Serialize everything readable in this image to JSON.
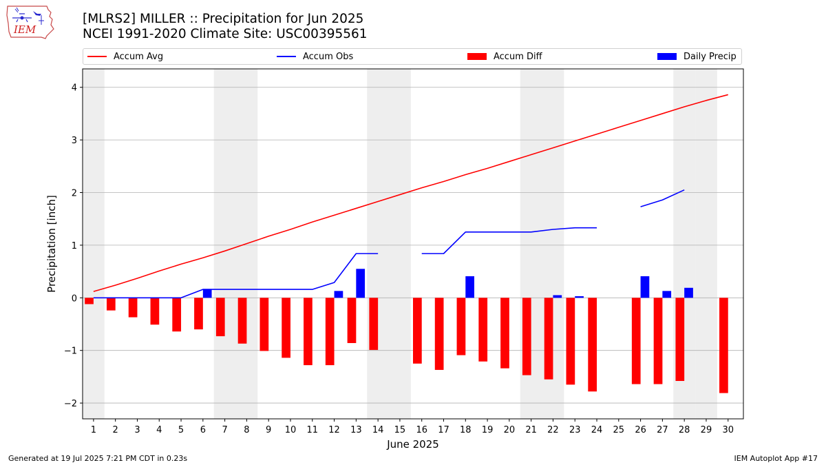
{
  "header": {
    "title_line1": "[MLRS2] MILLER :: Precipitation for Jun 2025",
    "title_line2": "NCEI 1991-2020 Climate Site: USC00395561",
    "logo_text": "IEM"
  },
  "footer": {
    "left": "Generated at 19 Jul 2025 7:21 PM CDT in 0.23s",
    "right": "IEM Autoplot App #17"
  },
  "colors": {
    "avg": "#ff0000",
    "obs": "#0000ff",
    "diff": "#ff0000",
    "daily": "#0000ff",
    "weekend_shade": "#eeeeee",
    "grid": "#b0b0b0"
  },
  "chart_data": {
    "type": "bar",
    "xlabel": "June 2025",
    "ylabel": "Precipitation [inch]",
    "ylim": [
      -2.3,
      4.35
    ],
    "yticks": [
      -2,
      -1,
      0,
      1,
      2,
      3,
      4
    ],
    "ytick_labels": [
      "−2",
      "−1",
      "0",
      "1",
      "2",
      "3",
      "4"
    ],
    "grid": true,
    "legend_placement": "top",
    "x_days": [
      1,
      2,
      3,
      4,
      5,
      6,
      7,
      8,
      9,
      10,
      11,
      12,
      13,
      14,
      15,
      16,
      17,
      18,
      19,
      20,
      21,
      22,
      23,
      24,
      25,
      26,
      27,
      28,
      29,
      30
    ],
    "xtick_labels": [
      "1",
      "2",
      "3",
      "4",
      "5",
      "6",
      "7",
      "8",
      "9",
      "10",
      "11",
      "12",
      "13",
      "14",
      "15",
      "16",
      "17",
      "18",
      "19",
      "20",
      "21",
      "22",
      "23",
      "24",
      "25",
      "26",
      "27",
      "28",
      "29",
      "30"
    ],
    "weekend_shaded_days": [
      1,
      7,
      8,
      14,
      15,
      21,
      22,
      28,
      29
    ],
    "series": [
      {
        "name": "Accum Avg",
        "kind": "line",
        "values": [
          0.12,
          0.24,
          0.37,
          0.51,
          0.64,
          0.76,
          0.89,
          1.03,
          1.17,
          1.3,
          1.44,
          1.57,
          1.7,
          1.83,
          1.96,
          2.09,
          2.21,
          2.34,
          2.46,
          2.59,
          2.72,
          2.85,
          2.98,
          3.11,
          3.24,
          3.37,
          3.5,
          3.63,
          3.75,
          3.86
        ]
      },
      {
        "name": "Accum Obs",
        "kind": "line",
        "values": [
          0.0,
          0.0,
          0.0,
          0.0,
          0.0,
          0.16,
          0.16,
          0.16,
          0.16,
          0.16,
          0.16,
          0.29,
          0.84,
          0.84,
          null,
          0.84,
          0.84,
          1.25,
          1.25,
          1.25,
          1.25,
          1.3,
          1.33,
          1.33,
          null,
          1.73,
          1.86,
          2.05,
          null,
          null
        ]
      },
      {
        "name": "Accum Diff",
        "kind": "bar",
        "values": [
          -0.12,
          -0.24,
          -0.37,
          -0.51,
          -0.64,
          -0.6,
          -0.73,
          -0.87,
          -1.01,
          -1.14,
          -1.28,
          -1.28,
          -0.86,
          -0.99,
          null,
          -1.25,
          -1.37,
          -1.09,
          -1.21,
          -1.34,
          -1.47,
          -1.55,
          -1.65,
          -1.78,
          null,
          -1.64,
          -1.64,
          -1.58,
          null,
          -1.81
        ]
      },
      {
        "name": "Daily Precip",
        "kind": "bar",
        "values": [
          0,
          0,
          0,
          0,
          0,
          0.16,
          0,
          0,
          0,
          0,
          0,
          0.13,
          0.55,
          0,
          null,
          0,
          0,
          0.41,
          0,
          0,
          0,
          0.05,
          0.03,
          0,
          null,
          0.41,
          0.13,
          0.19,
          null,
          null
        ]
      }
    ]
  }
}
